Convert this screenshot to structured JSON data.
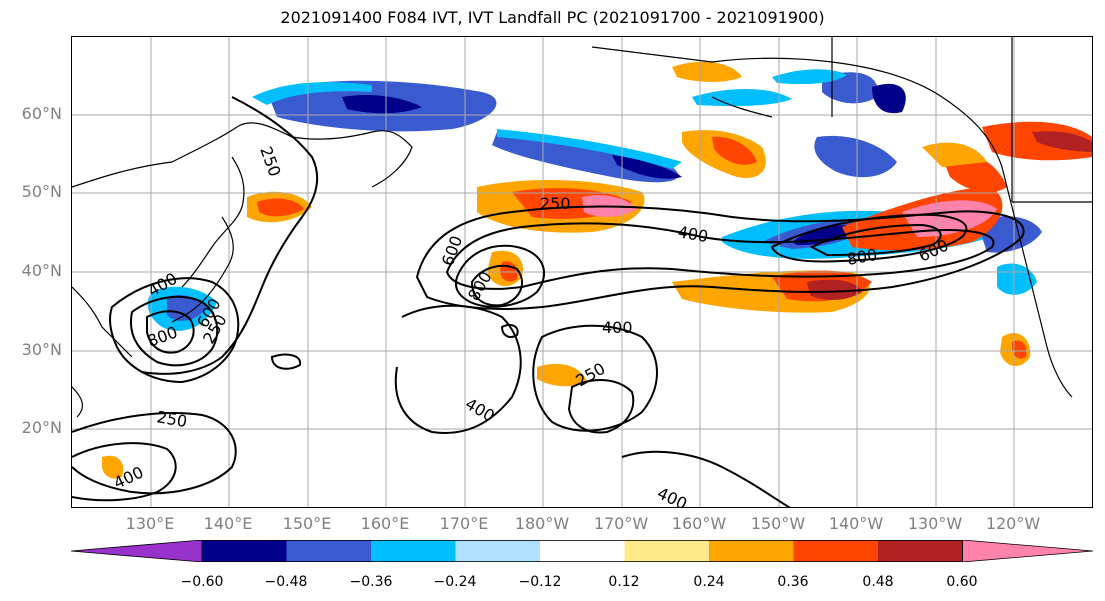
{
  "title": "2021091400 F084 IVT, IVT Landfall PC (2021091700 - 2021091900)",
  "map": {
    "lat_labels": [
      "60°N",
      "50°N",
      "40°N",
      "30°N",
      "20°N"
    ],
    "lon_labels": [
      "130°E",
      "140°E",
      "150°E",
      "160°E",
      "170°E",
      "180°W",
      "170°W",
      "160°W",
      "150°W",
      "140°W",
      "130°W",
      "120°W"
    ],
    "contour_labels": [
      "250",
      "250",
      "600",
      "400",
      "800",
      "600",
      "400",
      "800",
      "250",
      "600",
      "800",
      "400",
      "400",
      "250",
      "400",
      "400",
      "250",
      "400"
    ]
  },
  "colorbar": {
    "ticks": [
      "−0.60",
      "−0.48",
      "−0.36",
      "−0.24",
      "−0.12",
      "0.12",
      "0.24",
      "0.36",
      "0.48",
      "0.60"
    ],
    "colors": [
      "#9932cc",
      "#00008b",
      "#3a5bd0",
      "#00bfff",
      "#b0e0ff",
      "#ffffff",
      "#ffeb8a",
      "#ffa500",
      "#ff4500",
      "#b22222",
      "#ff82ab"
    ]
  }
}
